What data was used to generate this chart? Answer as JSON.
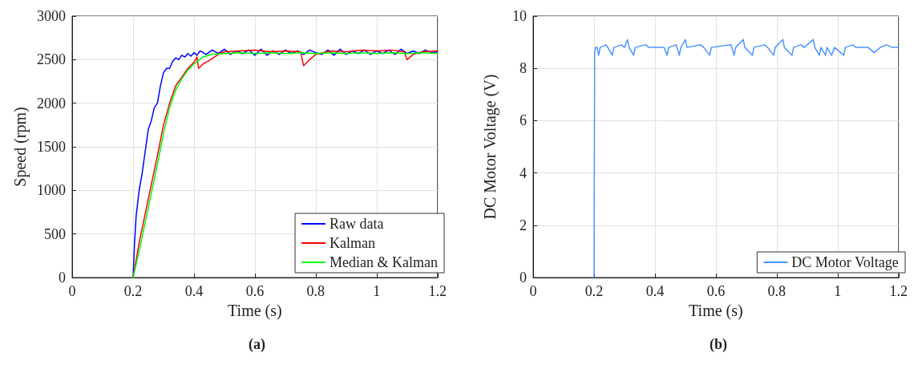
{
  "chart_data": [
    {
      "type": "line",
      "xlabel": "Time (s)",
      "ylabel": "Speed (rpm)",
      "xlim": [
        0,
        1.2
      ],
      "xticks": [
        0,
        0.2,
        0.4,
        0.6,
        0.8,
        1,
        1.2
      ],
      "ylim": [
        0,
        3000
      ],
      "yticks": [
        0,
        500,
        1000,
        1500,
        2000,
        2500,
        3000
      ],
      "grid": true,
      "legend": "bottom right",
      "marker": "none",
      "line_style": "solid",
      "annotations": [
        "(a)"
      ],
      "series": [
        {
          "name": "Raw data",
          "color": "#0000ff",
          "x": [
            0.2,
            0.205,
            0.21,
            0.22,
            0.23,
            0.24,
            0.25,
            0.26,
            0.27,
            0.28,
            0.29,
            0.3,
            0.31,
            0.32,
            0.33,
            0.34,
            0.35,
            0.36,
            0.37,
            0.38,
            0.39,
            0.4,
            0.41,
            0.42,
            0.44,
            0.46,
            0.48,
            0.5,
            0.52,
            0.54,
            0.56,
            0.58,
            0.6,
            0.62,
            0.64,
            0.66,
            0.68,
            0.7,
            0.72,
            0.74,
            0.76,
            0.78,
            0.8,
            0.82,
            0.84,
            0.86,
            0.88,
            0.9,
            0.92,
            0.94,
            0.96,
            0.98,
            1.0,
            1.02,
            1.04,
            1.06,
            1.08,
            1.1,
            1.12,
            1.14,
            1.16,
            1.18,
            1.2
          ],
          "values": [
            0,
            400,
            700,
            1000,
            1200,
            1450,
            1700,
            1800,
            1950,
            2000,
            2200,
            2350,
            2400,
            2400,
            2480,
            2520,
            2500,
            2550,
            2530,
            2570,
            2540,
            2580,
            2550,
            2600,
            2560,
            2610,
            2570,
            2620,
            2560,
            2600,
            2570,
            2610,
            2550,
            2620,
            2550,
            2600,
            2560,
            2610,
            2570,
            2600,
            2560,
            2610,
            2580,
            2560,
            2610,
            2550,
            2620,
            2560,
            2600,
            2570,
            2610,
            2560,
            2600,
            2570,
            2610,
            2560,
            2620,
            2570,
            2600,
            2570,
            2610,
            2580,
            2590
          ]
        },
        {
          "name": "Kalman",
          "color": "#ff0000",
          "x": [
            0.2,
            0.22,
            0.25,
            0.28,
            0.3,
            0.32,
            0.34,
            0.36,
            0.38,
            0.4,
            0.41,
            0.415,
            0.43,
            0.45,
            0.48,
            0.5,
            0.55,
            0.6,
            0.65,
            0.7,
            0.75,
            0.76,
            0.78,
            0.8,
            0.85,
            0.9,
            0.95,
            1.0,
            1.05,
            1.09,
            1.1,
            1.12,
            1.15,
            1.2
          ],
          "values": [
            0,
            400,
            900,
            1400,
            1750,
            2000,
            2200,
            2300,
            2400,
            2470,
            2530,
            2400,
            2450,
            2490,
            2560,
            2590,
            2600,
            2610,
            2590,
            2600,
            2590,
            2430,
            2500,
            2560,
            2600,
            2590,
            2610,
            2600,
            2610,
            2590,
            2500,
            2560,
            2590,
            2600
          ]
        },
        {
          "name": "Median & Kalman",
          "color": "#00ff00",
          "x": [
            0.2,
            0.22,
            0.25,
            0.28,
            0.3,
            0.32,
            0.34,
            0.36,
            0.38,
            0.4,
            0.43,
            0.46,
            0.5,
            0.55,
            0.6,
            0.65,
            0.7,
            0.75,
            0.8,
            0.85,
            0.9,
            0.95,
            1.0,
            1.05,
            1.1,
            1.15,
            1.2
          ],
          "values": [
            0,
            300,
            800,
            1300,
            1650,
            1950,
            2150,
            2280,
            2380,
            2450,
            2530,
            2560,
            2570,
            2580,
            2570,
            2580,
            2570,
            2580,
            2570,
            2580,
            2570,
            2580,
            2570,
            2580,
            2570,
            2580,
            2570
          ]
        }
      ]
    },
    {
      "type": "line",
      "xlabel": "Time (s)",
      "ylabel": "DC Motor Voltage (V)",
      "xlim": [
        0,
        1.2
      ],
      "xticks": [
        0,
        0.2,
        0.4,
        0.6,
        0.8,
        1,
        1.2
      ],
      "ylim": [
        0,
        10
      ],
      "yticks": [
        0,
        2,
        4,
        6,
        8,
        10
      ],
      "grid": true,
      "legend": "bottom right",
      "marker": "none",
      "line_style": "solid",
      "annotations": [
        "(b)"
      ],
      "series": [
        {
          "name": "DC Motor Voltage",
          "color": "#4d94ff",
          "x": [
            0.2,
            0.202,
            0.205,
            0.21,
            0.215,
            0.22,
            0.24,
            0.245,
            0.26,
            0.265,
            0.29,
            0.3,
            0.31,
            0.315,
            0.33,
            0.335,
            0.37,
            0.38,
            0.43,
            0.44,
            0.445,
            0.47,
            0.48,
            0.485,
            0.5,
            0.505,
            0.55,
            0.56,
            0.58,
            0.585,
            0.65,
            0.66,
            0.665,
            0.69,
            0.695,
            0.72,
            0.725,
            0.76,
            0.77,
            0.79,
            0.795,
            0.82,
            0.825,
            0.85,
            0.855,
            0.88,
            0.89,
            0.92,
            0.925,
            0.94,
            0.945,
            0.96,
            0.965,
            0.98,
            0.99,
            1.02,
            1.025,
            1.05,
            1.06,
            1.1,
            1.12,
            1.14,
            1.16,
            1.18,
            1.2
          ],
          "values": [
            0,
            8.6,
            8.8,
            8.8,
            8.5,
            8.8,
            8.9,
            8.8,
            8.5,
            8.8,
            8.9,
            8.8,
            9.1,
            8.8,
            8.5,
            8.8,
            8.9,
            8.8,
            8.8,
            8.5,
            8.8,
            8.9,
            8.5,
            8.8,
            9.1,
            8.8,
            8.9,
            8.8,
            8.5,
            8.8,
            8.9,
            8.5,
            8.8,
            9.1,
            8.8,
            8.5,
            8.8,
            8.9,
            8.8,
            8.5,
            8.8,
            9.1,
            8.8,
            8.5,
            8.8,
            8.9,
            8.8,
            9.1,
            8.8,
            8.5,
            8.8,
            8.5,
            8.8,
            8.5,
            8.8,
            8.5,
            8.8,
            8.9,
            8.8,
            8.8,
            8.6,
            8.8,
            8.9,
            8.8,
            8.8
          ]
        }
      ]
    }
  ]
}
